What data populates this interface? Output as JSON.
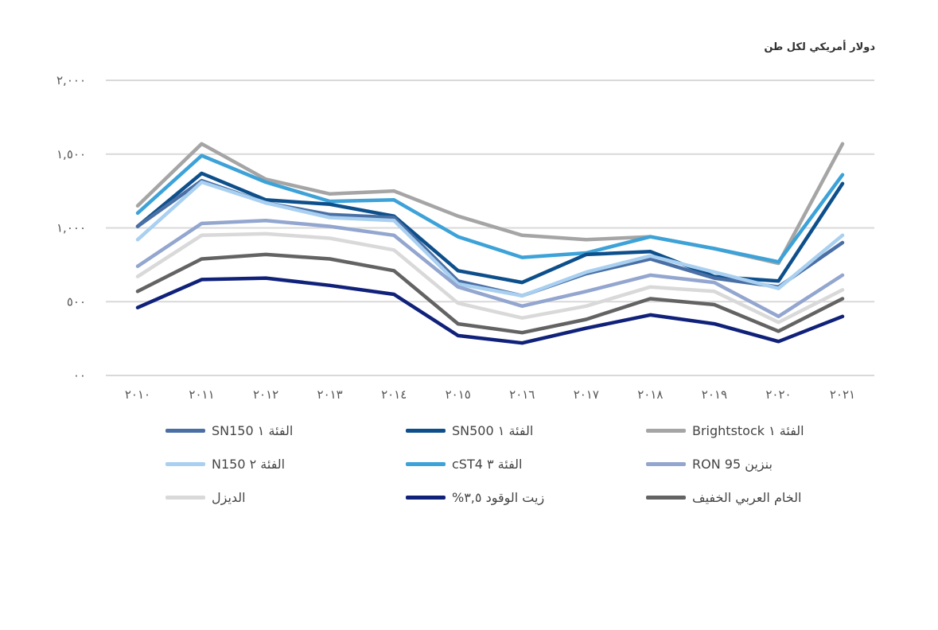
{
  "chart_data": {
    "type": "line",
    "unit_label": "دولار أمريكي لكل طن",
    "y_ticks": [
      "٠٠",
      "٥٠٠",
      "١,٠٠٠",
      "١,٥٠٠",
      "٢,٠٠٠"
    ],
    "y_tick_values": [
      0,
      500,
      1000,
      1500,
      2000
    ],
    "ylim": [
      0,
      2000
    ],
    "categories": [
      "٢٠١٠",
      "٢٠١١",
      "٢٠١٢",
      "٢٠١٣",
      "٢٠١٤",
      "٢٠١٥",
      "٢٠١٦",
      "٢٠١٧",
      "٢٠١٨",
      "٢٠١٩",
      "٢٠٢٠",
      "٢٠٢١"
    ],
    "grid": true,
    "legend_position": "bottom",
    "series": [
      {
        "name": "الفئة ١ Brightstock",
        "color": "#a5a5a5",
        "values": [
          1150,
          1570,
          1330,
          1230,
          1250,
          1080,
          950,
          920,
          940,
          860,
          760,
          1570
        ]
      },
      {
        "name": "الفئة ٣ cST4",
        "color": "#3ca2d8",
        "values": [
          1100,
          1490,
          1310,
          1180,
          1190,
          940,
          800,
          830,
          940,
          860,
          770,
          1360
        ]
      },
      {
        "name": "الفئة ١ SN500",
        "color": "#0d4f8b",
        "values": [
          1010,
          1370,
          1190,
          1160,
          1080,
          710,
          630,
          820,
          840,
          670,
          640,
          1300
        ]
      },
      {
        "name": "الفئة ١ SN150",
        "color": "#4a6fa5",
        "values": [
          1010,
          1320,
          1170,
          1090,
          1070,
          640,
          540,
          690,
          790,
          660,
          600,
          900
        ]
      },
      {
        "name": "الفئة ٢ N150",
        "color": "#a9d0f0",
        "values": [
          920,
          1310,
          1170,
          1070,
          1050,
          620,
          540,
          700,
          810,
          700,
          590,
          950
        ]
      },
      {
        "name": "بنزين RON 95",
        "color": "#93a6cf",
        "values": [
          740,
          1030,
          1050,
          1010,
          950,
          600,
          470,
          570,
          680,
          630,
          400,
          680
        ]
      },
      {
        "name": "الديزل",
        "color": "#d9d9d9",
        "values": [
          670,
          950,
          960,
          930,
          850,
          490,
          390,
          470,
          600,
          570,
          360,
          580
        ]
      },
      {
        "name": "الخام العربي الخفيف",
        "color": "#636363",
        "values": [
          570,
          790,
          820,
          790,
          710,
          350,
          290,
          380,
          520,
          480,
          300,
          520
        ]
      },
      {
        "name": "زيت الوقود ٣,٥%",
        "color": "#10217a",
        "values": [
          460,
          650,
          660,
          610,
          550,
          270,
          220,
          320,
          410,
          350,
          230,
          400
        ]
      }
    ]
  },
  "legend": [
    {
      "label": "الفئة ١ SN150",
      "color": "#4a6fa5"
    },
    {
      "label": "الفئة ١ SN500",
      "color": "#0d4f8b"
    },
    {
      "label": "الفئة ١ Brightstock",
      "color": "#a5a5a5"
    },
    {
      "label": "الفئة ٢ N150",
      "color": "#a9d0f0"
    },
    {
      "label": "الفئة ٣ cST4",
      "color": "#3ca2d8"
    },
    {
      "label": "بنزين RON 95",
      "color": "#93a6cf"
    },
    {
      "label": "الديزل",
      "color": "#d9d9d9"
    },
    {
      "label": "زيت الوقود ٣,٥%",
      "color": "#10217a"
    },
    {
      "label": "الخام العربي الخفيف",
      "color": "#636363"
    }
  ]
}
